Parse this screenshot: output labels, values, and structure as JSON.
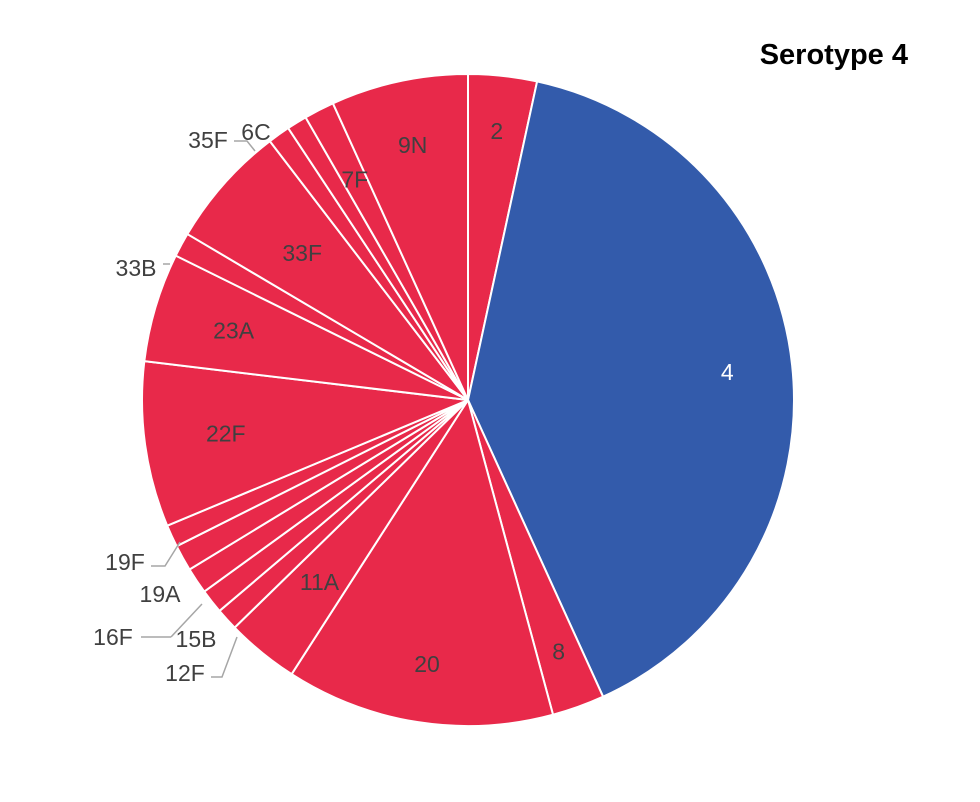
{
  "chart_data": {
    "type": "pie",
    "title": "Serotype 4",
    "start_angle_deg": 0,
    "direction": "clockwise",
    "colors": {
      "highlight": "#335bab",
      "other": "#e8294a",
      "edge": "#ffffff",
      "label_light": "#ffffff",
      "label_dark": "#404040"
    },
    "slices": [
      {
        "label": "2",
        "value": 3.4,
        "highlight": false
      },
      {
        "label": "4",
        "value": 39.8,
        "highlight": true
      },
      {
        "label": "8",
        "value": 2.6,
        "highlight": false
      },
      {
        "label": "20",
        "value": 13.3,
        "highlight": false
      },
      {
        "label": "11A",
        "value": 3.6,
        "highlight": false
      },
      {
        "label": "12F",
        "value": 1.1,
        "highlight": false
      },
      {
        "label": "15B",
        "value": 1.2,
        "highlight": false
      },
      {
        "label": "16F",
        "value": 1.3,
        "highlight": false
      },
      {
        "label": "19A",
        "value": 1.3,
        "highlight": false
      },
      {
        "label": "19F",
        "value": 1.1,
        "highlight": false
      },
      {
        "label": "22F",
        "value": 8.2,
        "highlight": false
      },
      {
        "label": "23A",
        "value": 5.4,
        "highlight": false
      },
      {
        "label": "33B",
        "value": 1.2,
        "highlight": false
      },
      {
        "label": "33F",
        "value": 6.1,
        "highlight": false
      },
      {
        "label": "35F",
        "value": 1.1,
        "highlight": false
      },
      {
        "label": "6C",
        "value": 1.0,
        "highlight": false
      },
      {
        "label": "7F",
        "value": 1.5,
        "highlight": false
      },
      {
        "label": "9N",
        "value": 6.8,
        "highlight": false
      }
    ]
  }
}
